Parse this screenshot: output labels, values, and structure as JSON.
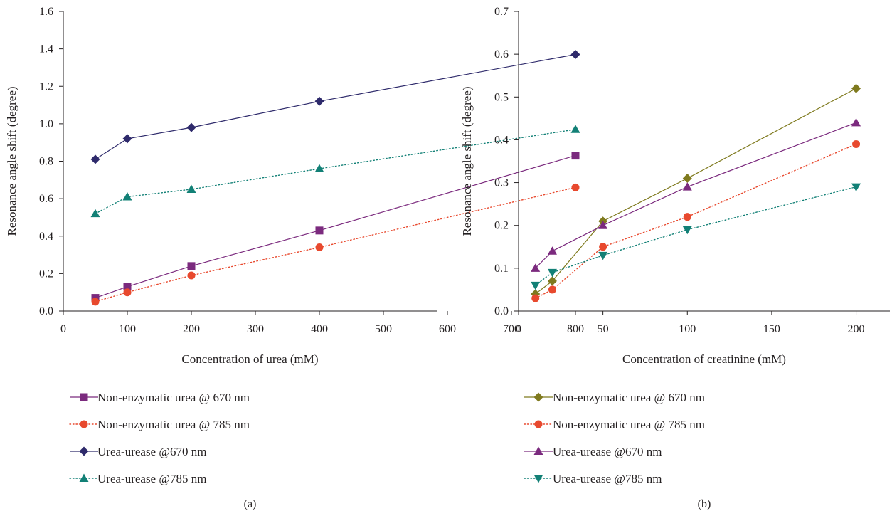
{
  "chart_data": [
    {
      "type": "line",
      "panel_label": "(a)",
      "xlabel": "Concentration of urea (mM)",
      "ylabel": "Resonance angle shift (degree)",
      "xlim": [
        0,
        800
      ],
      "ylim": [
        0,
        1.6
      ],
      "xticks": [
        0,
        100,
        200,
        300,
        400,
        500,
        600,
        700,
        800
      ],
      "yticks": [
        "0.0",
        "0.2",
        "0.4",
        "0.6",
        "0.8",
        "1.0",
        "1.2",
        "1.4",
        "1.6"
      ],
      "grid": false,
      "legend_position": "bottom",
      "x": [
        50,
        100,
        200,
        400,
        800
      ],
      "series": [
        {
          "name": "Non-enzymatic urea @ 670 nm",
          "values": [
            0.07,
            0.13,
            0.24,
            0.43,
            0.83
          ],
          "color": "#7b2a7e",
          "marker": "square",
          "dashed": false
        },
        {
          "name": "Non-enzymatic urea @ 785 nm",
          "values": [
            0.05,
            0.1,
            0.19,
            0.34,
            0.66
          ],
          "color": "#e8492e",
          "marker": "circle",
          "dashed": true
        },
        {
          "name": "Urea-urease @670 nm",
          "values": [
            0.81,
            0.92,
            0.98,
            1.12,
            1.37
          ],
          "color": "#2e2a6b",
          "marker": "diamond",
          "dashed": false
        },
        {
          "name": "Urea-urease @785 nm",
          "values": [
            0.52,
            0.61,
            0.65,
            0.76,
            0.97
          ],
          "color": "#128076",
          "marker": "triangle-up",
          "dashed": true
        }
      ]
    },
    {
      "type": "line",
      "panel_label": "(b)",
      "xlabel": "Concentration of creatinine (mM)",
      "ylabel": "Resonance angle shift (degree)",
      "xlim": [
        0,
        220
      ],
      "ylim": [
        0,
        0.7
      ],
      "xticks": [
        0,
        50,
        100,
        150,
        200
      ],
      "yticks": [
        "0.0",
        "0.1",
        "0.2",
        "0.3",
        "0.4",
        "0.5",
        "0.6",
        "0.7"
      ],
      "grid": false,
      "legend_position": "bottom",
      "x": [
        10,
        20,
        50,
        100,
        200
      ],
      "series": [
        {
          "name": "Non-enzymatic urea @ 670 nm",
          "values": [
            0.04,
            0.07,
            0.21,
            0.31,
            0.52
          ],
          "color": "#7f7a1e",
          "marker": "diamond",
          "dashed": false
        },
        {
          "name": "Non-enzymatic urea @ 785 nm",
          "values": [
            0.03,
            0.05,
            0.15,
            0.22,
            0.39
          ],
          "color": "#e8492e",
          "marker": "circle",
          "dashed": true
        },
        {
          "name": "Urea-urease @670 nm",
          "values": [
            0.1,
            0.14,
            0.2,
            0.29,
            0.44
          ],
          "color": "#7b2a7e",
          "marker": "triangle-up",
          "dashed": false
        },
        {
          "name": "Urea-urease @785 nm",
          "values": [
            0.06,
            0.09,
            0.13,
            0.19,
            0.29
          ],
          "color": "#128076",
          "marker": "triangle-down",
          "dashed": true
        }
      ]
    }
  ]
}
